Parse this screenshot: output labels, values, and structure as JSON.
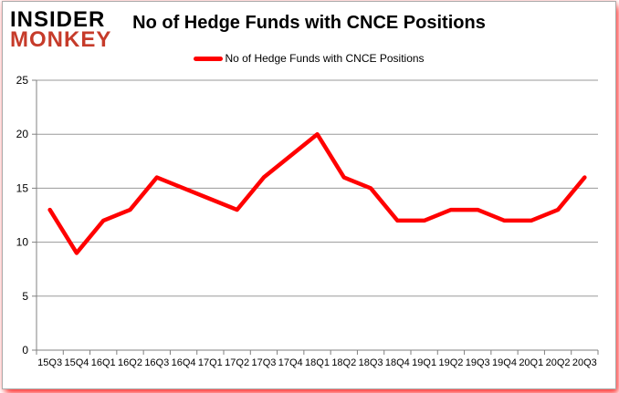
{
  "logo": {
    "line1": "INSIDER",
    "line2": "MONKEY",
    "monkey_color": "#C63B2A"
  },
  "header": {
    "title": "No of Hedge Funds with CNCE Positions"
  },
  "legend": {
    "label": "No of Hedge Funds with CNCE Positions",
    "marker_color": "#FF0000"
  },
  "chart_data": {
    "type": "line",
    "title": "No of Hedge Funds with CNCE Positions",
    "categories": [
      "15Q3",
      "15Q4",
      "16Q1",
      "16Q2",
      "16Q3",
      "16Q4",
      "17Q1",
      "17Q2",
      "17Q3",
      "17Q4",
      "18Q1",
      "18Q2",
      "18Q3",
      "18Q4",
      "19Q1",
      "19Q2",
      "19Q3",
      "19Q4",
      "20Q1",
      "20Q2",
      "20Q3"
    ],
    "series": [
      {
        "name": "No of Hedge Funds with CNCE Positions",
        "color": "#FF0000",
        "values": [
          13,
          9,
          12,
          13,
          16,
          15,
          14,
          13,
          16,
          18,
          20,
          16,
          15,
          12,
          12,
          13,
          13,
          12,
          12,
          13,
          16
        ]
      }
    ],
    "xlabel": "",
    "ylabel": "",
    "ylim": [
      0,
      25
    ],
    "yticks": [
      0,
      5,
      10,
      15,
      20,
      25
    ],
    "grid": true,
    "legend_position": "top"
  },
  "colors": {
    "series_red": "#FF0000",
    "gridline": "#9a9a9a",
    "axis": "#808080",
    "text": "#000000"
  }
}
